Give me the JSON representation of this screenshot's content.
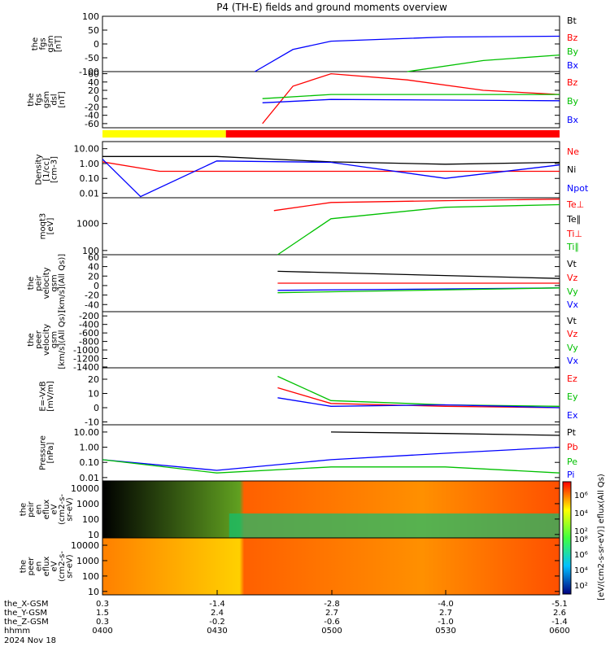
{
  "title": "P4 (TH-E) fields and ground moments overview",
  "panels": [
    {
      "id": "fgs_gsm",
      "ylabel_lines": [
        "the",
        "fgs",
        "gsm",
        "[nT]"
      ],
      "yticks": [
        "100",
        "50",
        "0",
        "-50",
        "-100"
      ],
      "legend": [
        {
          "label": "Bt",
          "color": "#000000"
        },
        {
          "label": "Bz",
          "color": "#ff0000"
        },
        {
          "label": "By",
          "color": "#00c000"
        },
        {
          "label": "Bx",
          "color": "#0000ff"
        }
      ]
    },
    {
      "id": "fgs_dsl",
      "ylabel_lines": [
        "the",
        "fgs",
        "gsm",
        "dsl",
        "[nT]"
      ],
      "yticks": [
        "60",
        "40",
        "20",
        "0",
        "-20",
        "-40",
        "-60"
      ],
      "legend": [
        {
          "label": "Bz",
          "color": "#ff0000"
        },
        {
          "label": "By",
          "color": "#00c000"
        },
        {
          "label": "Bx",
          "color": "#0000ff"
        }
      ]
    },
    {
      "id": "density",
      "ylabel_lines": [
        "Density",
        "[1/cc]",
        "[cm-3]"
      ],
      "yticks": [
        "10.00",
        "1.00",
        "0.10",
        "0.01"
      ],
      "legend": [
        {
          "label": "Ne",
          "color": "#ff0000"
        },
        {
          "label": "Ni",
          "color": "#000000"
        },
        {
          "label": "Npot",
          "color": "#0000ff"
        }
      ]
    },
    {
      "id": "temp",
      "ylabel_lines": [
        "moqt3",
        "[eV]"
      ],
      "yticks": [
        "1000",
        "100"
      ],
      "legend": [
        {
          "label": "Te⊥",
          "color": "#ff0000"
        },
        {
          "label": "Te∥",
          "color": "#000000"
        },
        {
          "label": "Ti⊥",
          "color": "#ff0000"
        },
        {
          "label": "Ti∥",
          "color": "#00c000"
        }
      ]
    },
    {
      "id": "peir_vel",
      "ylabel_lines": [
        "the",
        "peir",
        "velocity",
        "gsm",
        "[km/s](All Qs)]"
      ],
      "yticks": [
        "60",
        "40",
        "20",
        "0",
        "-20",
        "-40"
      ],
      "legend": [
        {
          "label": "Vt",
          "color": "#000000"
        },
        {
          "label": "Vz",
          "color": "#ff0000"
        },
        {
          "label": "Vy",
          "color": "#00c000"
        },
        {
          "label": "Vx",
          "color": "#0000ff"
        }
      ]
    },
    {
      "id": "peer_vel",
      "ylabel_lines": [
        "the",
        "peer",
        "velocity",
        "gsm",
        "[km/s](All Qs)]"
      ],
      "yticks": [
        "-200",
        "-400",
        "-600",
        "-800",
        "-1000",
        "-1200",
        "-1400"
      ],
      "legend": [
        {
          "label": "Vt",
          "color": "#000000"
        },
        {
          "label": "Vz",
          "color": "#ff0000"
        },
        {
          "label": "Vy",
          "color": "#00c000"
        },
        {
          "label": "Vx",
          "color": "#0000ff"
        }
      ]
    },
    {
      "id": "efield",
      "ylabel_lines": [
        "E=-VxB",
        "[mV/m]"
      ],
      "yticks": [
        "20",
        "10",
        "0",
        "-10"
      ],
      "legend": [
        {
          "label": "Ez",
          "color": "#ff0000"
        },
        {
          "label": "Ey",
          "color": "#00c000"
        },
        {
          "label": "Ex",
          "color": "#0000ff"
        }
      ]
    },
    {
      "id": "pressure",
      "ylabel_lines": [
        "Pressure",
        "[nPa]"
      ],
      "yticks": [
        "10.00",
        "1.00",
        "0.10",
        "0.01"
      ],
      "legend": [
        {
          "label": "Pt",
          "color": "#000000"
        },
        {
          "label": "Pb",
          "color": "#ff0000"
        },
        {
          "label": "Pe",
          "color": "#00c000"
        },
        {
          "label": "Pi",
          "color": "#0000ff"
        }
      ]
    },
    {
      "id": "peir_spec",
      "ylabel_lines": [
        "the",
        "peir",
        "en",
        "eflux",
        "eV",
        "(cm2-s-",
        "sr-eV)"
      ],
      "yticks": [
        "10000",
        "1000",
        "100",
        "10"
      ],
      "legend": []
    },
    {
      "id": "peer_spec",
      "ylabel_lines": [
        "the",
        "peer",
        "en",
        "eflux",
        "eV",
        "(cm2-s-",
        "sr-eV)"
      ],
      "yticks": [
        "10000",
        "1000",
        "100",
        "10"
      ],
      "legend": []
    }
  ],
  "colorbar": {
    "label": "[eV/(cm2-s-sr-eV)] eflux(All Qs)",
    "ticks_top": [
      "10⁶",
      "10⁴",
      "10²"
    ],
    "ticks_bottom": [
      "10⁸",
      "10⁶",
      "10⁴",
      "10²"
    ]
  },
  "x_axis": {
    "rows": [
      {
        "label": "the_X-GSM",
        "values": [
          "0.3",
          "-1.4",
          "-2.8",
          "-4.0",
          "-5.1"
        ]
      },
      {
        "label": "the_Y-GSM",
        "values": [
          "1.5",
          "2.4",
          "2.7",
          "2.7",
          "2.6"
        ]
      },
      {
        "label": "the_Z-GSM",
        "values": [
          "0.3",
          "-0.2",
          "-0.6",
          "-1.0",
          "-1.4"
        ]
      },
      {
        "label": "hhmm",
        "values": [
          "0400",
          "0430",
          "0500",
          "0530",
          "0600"
        ]
      }
    ],
    "date": "2024 Nov 18"
  },
  "status_bar": {
    "yellow_end_fraction": 0.27,
    "colors": [
      "#ffff00",
      "#ff0000"
    ]
  },
  "chart_data": {
    "type": "line",
    "title": "P4 (TH-E) fields and ground moments overview",
    "x": [
      "0400",
      "0430",
      "0500",
      "0530",
      "0600"
    ],
    "x_start": "0400",
    "x_end": "0600",
    "series": [
      {
        "name": "Bx",
        "panel": "fgs_gsm",
        "x": [
          "0440",
          "0450",
          "0500",
          "0530",
          "0600"
        ],
        "values": [
          -100,
          -20,
          10,
          25,
          28
        ]
      },
      {
        "name": "By",
        "panel": "fgs_gsm",
        "x": [
          "0520",
          "0540",
          "0600"
        ],
        "values": [
          -100,
          -60,
          -40
        ]
      },
      {
        "name": "Bz",
        "panel": "fgs_dsl",
        "x": [
          "0442",
          "0450",
          "0500",
          "0520",
          "0540",
          "0600"
        ],
        "values": [
          -60,
          30,
          60,
          45,
          20,
          10
        ]
      },
      {
        "name": "By",
        "panel": "fgs_dsl",
        "x": [
          "0442",
          "0500",
          "0600"
        ],
        "values": [
          0,
          10,
          10
        ]
      },
      {
        "name": "Bx",
        "panel": "fgs_dsl",
        "x": [
          "0442",
          "0500",
          "0600"
        ],
        "values": [
          -10,
          -2,
          -5
        ]
      },
      {
        "name": "Ni",
        "panel": "density",
        "x": [
          "0400",
          "0430",
          "0500",
          "0530",
          "0600"
        ],
        "values": [
          3,
          3,
          1.3,
          0.9,
          1.2
        ]
      },
      {
        "name": "Ne",
        "panel": "density",
        "x": [
          "0400",
          "0415",
          "0430",
          "0500",
          "0600"
        ],
        "values": [
          1.3,
          0.3,
          0.3,
          0.3,
          0.3
        ]
      },
      {
        "name": "Npot",
        "panel": "density",
        "x": [
          "0400",
          "0410",
          "0430",
          "0500",
          "0530",
          "0600"
        ],
        "values": [
          2,
          0.006,
          1.5,
          1.2,
          0.1,
          0.8
        ]
      },
      {
        "name": "Te⊥",
        "panel": "temp",
        "x": [
          "0445",
          "0500",
          "0530",
          "0600"
        ],
        "values": [
          3000,
          6000,
          7000,
          8000
        ]
      },
      {
        "name": "Ti∥",
        "panel": "temp",
        "x": [
          "0446",
          "0500",
          "0530",
          "0600"
        ],
        "values": [
          70,
          1500,
          4000,
          5000
        ]
      },
      {
        "name": "Vx",
        "panel": "peir_vel",
        "x": [
          "0446",
          "0600"
        ],
        "values": [
          -10,
          -5
        ]
      },
      {
        "name": "Vy",
        "panel": "peir_vel",
        "x": [
          "0446",
          "0600"
        ],
        "values": [
          -15,
          -5
        ]
      },
      {
        "name": "Vz",
        "panel": "peir_vel",
        "x": [
          "0446",
          "0600"
        ],
        "values": [
          5,
          5
        ]
      },
      {
        "name": "Vt",
        "panel": "peir_vel",
        "x": [
          "0446",
          "0600"
        ],
        "values": [
          30,
          15
        ]
      },
      {
        "name": "Ey",
        "panel": "efield",
        "x": [
          "0446",
          "0500",
          "0530",
          "0600"
        ],
        "values": [
          22,
          5,
          2,
          1
        ]
      },
      {
        "name": "Ez",
        "panel": "efield",
        "x": [
          "0446",
          "0500",
          "0530",
          "0600"
        ],
        "values": [
          14,
          3,
          1,
          0
        ]
      },
      {
        "name": "Ex",
        "panel": "efield",
        "x": [
          "0446",
          "0500",
          "0530",
          "0600"
        ],
        "values": [
          7,
          1,
          2,
          0
        ]
      },
      {
        "name": "Pi",
        "panel": "pressure",
        "x": [
          "0400",
          "0430",
          "0500",
          "0530",
          "0600"
        ],
        "values": [
          0.15,
          0.03,
          0.15,
          0.4,
          1.0
        ]
      },
      {
        "name": "Pe",
        "panel": "pressure",
        "x": [
          "0400",
          "0430",
          "0500",
          "0530",
          "0600"
        ],
        "values": [
          0.15,
          0.02,
          0.05,
          0.05,
          0.02
        ]
      },
      {
        "name": "Pt",
        "panel": "pressure",
        "x": [
          "0500",
          "0530",
          "0600"
        ],
        "values": [
          10,
          8,
          6
        ]
      }
    ]
  }
}
